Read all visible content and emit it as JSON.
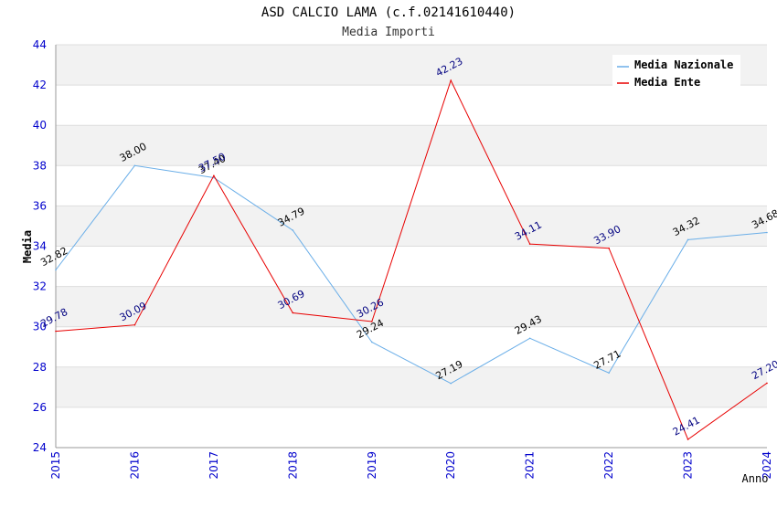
{
  "chart_data": {
    "type": "line",
    "title": "ASD CALCIO LAMA (c.f.02141610440)",
    "subtitle": "Media Importi",
    "xlabel": "Anno",
    "ylabel": "Media",
    "ylim": [
      24,
      44
    ],
    "ytick_step": 2,
    "grid": true,
    "legend_position": "top-right",
    "categories": [
      "2015",
      "2016",
      "2017",
      "2018",
      "2019",
      "2020",
      "2021",
      "2022",
      "2023",
      "2024"
    ],
    "series": [
      {
        "name": "Media Nazionale",
        "color": "#6aaee8",
        "label_color": "#000000",
        "values": [
          32.82,
          38.0,
          37.4,
          34.79,
          29.24,
          27.19,
          29.43,
          27.71,
          34.32,
          34.68
        ],
        "labels": [
          "32.82",
          "38.00",
          "37.40",
          "34.79",
          "29.24",
          "27.19",
          "29.43",
          "27.71",
          "34.32",
          "34.68"
        ]
      },
      {
        "name": "Media Ente",
        "color": "#e80000",
        "label_color": "#000080",
        "values": [
          29.78,
          30.09,
          37.5,
          30.69,
          30.26,
          42.23,
          34.11,
          33.9,
          24.41,
          27.2
        ],
        "labels": [
          "29.78",
          "30.09",
          "37.50",
          "30.69",
          "30.26",
          "42.23",
          "34.11",
          "33.90",
          "24.41",
          "27.20"
        ]
      }
    ],
    "colors": {
      "axis_tick_text": "#0000cc",
      "band": "#f2f2f2",
      "grid": "#dddddd",
      "axis": "#999999"
    }
  }
}
